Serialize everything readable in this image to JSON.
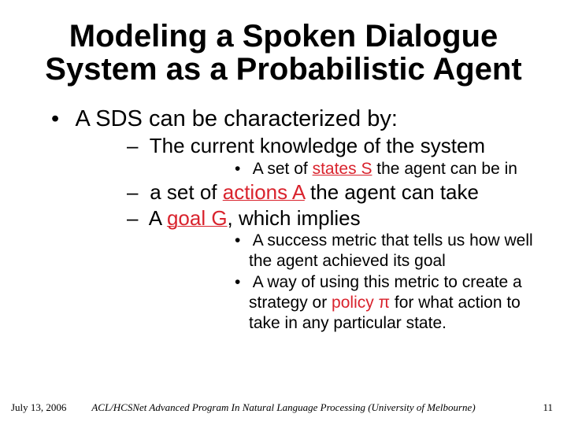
{
  "title": "Modeling a Spoken Dialogue System as a Probabilistic Agent",
  "bullet1": "A SDS can be characterized by:",
  "b2a": "The current knowledge of the system",
  "b3a_p1": "A set of ",
  "b3a_term_states": "states S",
  "b3a_p2": " the agent can be in",
  "b2b_p1": "a set of ",
  "b2b_term_actions": "actions A",
  "b2b_p2": " the agent can take",
  "b2c_p1": "A ",
  "b2c_term_goal": "goal G",
  "b2c_p2": ", which implies",
  "b3b": "A success metric that tells us how well the agent achieved its goal",
  "b3c_p1": "A way of using this metric to create a strategy or ",
  "b3c_term_policy": "policy",
  "b3c_pi": " π ",
  "b3c_p2": "for what action to take in any particular state.",
  "footer": {
    "date": "July 13, 2006",
    "venue": "ACL/HCSNet Advanced Program In Natural Language Processing (University of Melbourne)",
    "pageno": "11"
  },
  "colors": {
    "accent": "#d9232d",
    "text": "#000000",
    "background": "#ffffff"
  },
  "fonts": {
    "body": "Comic Sans MS",
    "footer": "Times New Roman"
  }
}
